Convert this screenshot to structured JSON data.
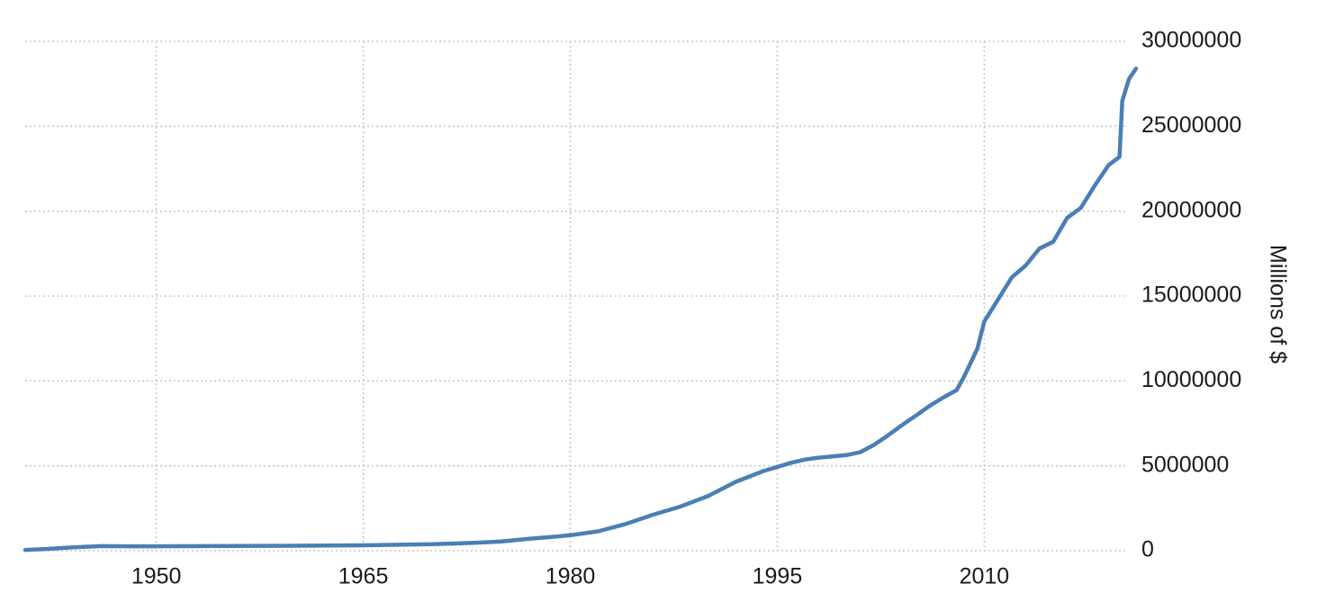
{
  "chart_data": {
    "type": "line",
    "title": "",
    "xlabel": "",
    "ylabel": "Millions of $",
    "xlim": [
      1940.5,
      2021
    ],
    "ylim": [
      0,
      30000000
    ],
    "x_ticks": [
      "1950",
      "1965",
      "1980",
      "1995",
      "2010"
    ],
    "y_ticks": [
      "0",
      "5000000",
      "10000000",
      "15000000",
      "20000000",
      "25000000",
      "30000000"
    ],
    "y_axis_position": "right",
    "grid": true,
    "legend": "none",
    "line_color": "#4a7fb5",
    "series": [
      {
        "x": [
          1940.5,
          1942,
          1944,
          1946,
          1948,
          1950,
          1955,
          1960,
          1965,
          1970,
          1973,
          1975,
          1977,
          1979,
          1980,
          1982,
          1984,
          1986,
          1988,
          1990,
          1992,
          1994,
          1996,
          1997,
          1998,
          2000,
          2001,
          2002,
          2003,
          2004,
          2005,
          2006,
          2007,
          2008,
          2008.5,
          2008.8,
          2009.5,
          2010,
          2011,
          2012,
          2013,
          2014,
          2015,
          2016,
          2017,
          2018,
          2019,
          2019.8,
          2020,
          2020.5,
          2021
        ],
        "values": [
          50000,
          100000,
          200000,
          270000,
          260000,
          260000,
          280000,
          290000,
          320000,
          380000,
          460000,
          540000,
          700000,
          830000,
          910000,
          1140000,
          1570000,
          2120000,
          2600000,
          3230000,
          4060000,
          4690000,
          5180000,
          5370000,
          5480000,
          5630000,
          5800000,
          6230000,
          6780000,
          7380000,
          7930000,
          8510000,
          9010000,
          9460000,
          10200000,
          10700000,
          11900000,
          13500000,
          14800000,
          16100000,
          16800000,
          17800000,
          18200000,
          19600000,
          20200000,
          21500000,
          22700000,
          23200000,
          26500000,
          27800000,
          28400000
        ]
      }
    ]
  }
}
